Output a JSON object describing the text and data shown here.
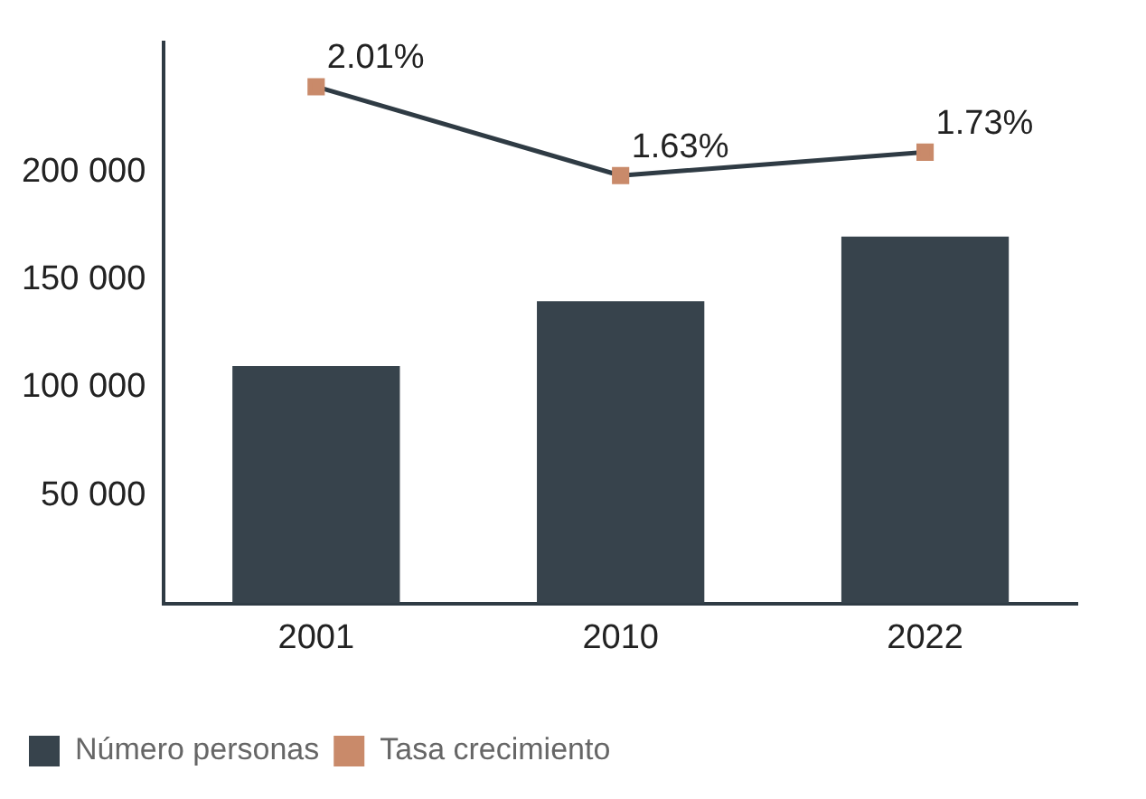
{
  "chart_data": {
    "type": "bar",
    "categories": [
      "2001",
      "2010",
      "2022"
    ],
    "series": [
      {
        "name": "Número personas",
        "color": "#37434c",
        "values": [
          110000,
          140000,
          170000
        ]
      },
      {
        "name": "Tasa crecimiento",
        "type": "line",
        "axis": "y2",
        "color": "#2f3b44",
        "marker": "square",
        "colors": [
          "#c98a6a",
          "#c98a6a",
          "#c98a6a"
        ],
        "values": [
          2.01,
          1.63,
          1.73
        ],
        "value_labels": [
          "2.01%",
          "1.63%",
          "1.73%"
        ]
      }
    ],
    "ylim": [
      0,
      260000
    ],
    "yticks": [
      {
        "value": 50000,
        "label": "50 000"
      },
      {
        "value": 100000,
        "label": "100 000"
      },
      {
        "value": 150000,
        "label": "150 000"
      },
      {
        "value": 200000,
        "label": "200 000"
      }
    ],
    "y2lim": [
      -0.2,
      2.2
    ],
    "grid": false,
    "legend": "bottom left"
  }
}
